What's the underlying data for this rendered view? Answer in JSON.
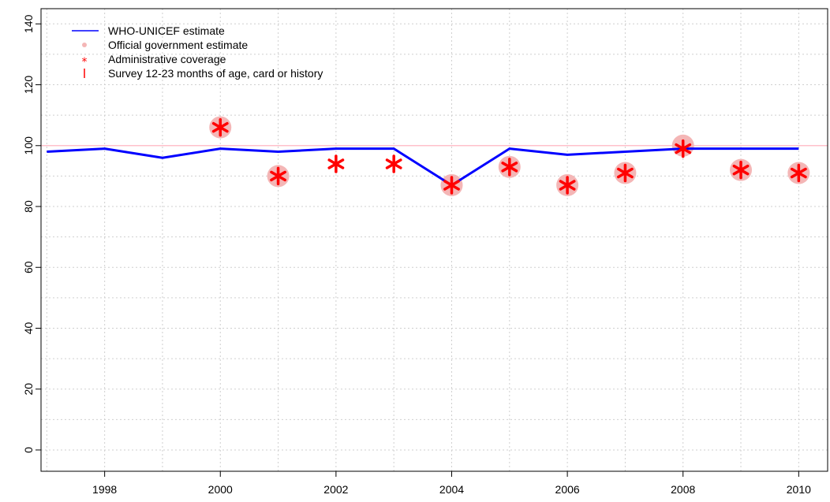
{
  "chart_data": {
    "type": "line",
    "x_range": [
      1996.9,
      2010.5
    ],
    "y_range": [
      -7,
      145
    ],
    "x_ticks": [
      1998,
      2000,
      2002,
      2004,
      2006,
      2008,
      2010
    ],
    "y_ticks": [
      0,
      20,
      40,
      60,
      80,
      100,
      120,
      140
    ],
    "x_tick_labels": [
      "1998",
      "2000",
      "2002",
      "2004",
      "2006",
      "2008",
      "2010"
    ],
    "y_tick_labels": [
      "0",
      "20",
      "40",
      "60",
      "80",
      "100",
      "120",
      "140"
    ],
    "grid": true,
    "reference_line": {
      "value": 100,
      "color": "#ffc0cb"
    },
    "legend": {
      "placement": "top-left",
      "entries": [
        {
          "label": "WHO-UNICEF estimate",
          "marker": "line",
          "color": "#0000ff"
        },
        {
          "label": "Official government estimate",
          "marker": "dot",
          "color": "#f4b6b6"
        },
        {
          "label": "Administrative coverage",
          "marker": "star",
          "color": "#ff0000"
        },
        {
          "label": "Survey 12-23 months of age, card or history",
          "marker": "bar",
          "color": "#ff0000"
        }
      ]
    },
    "series": [
      {
        "name": "WHO-UNICEF estimate",
        "color": "#0000ff",
        "kind": "line",
        "x": [
          1997,
          1998,
          1999,
          2000,
          2001,
          2002,
          2003,
          2004,
          2005,
          2006,
          2007,
          2008,
          2009,
          2010
        ],
        "y": [
          98,
          99,
          96,
          99,
          98,
          99,
          99,
          87,
          99,
          97,
          98,
          99,
          99,
          99
        ]
      },
      {
        "name": "Official government estimate",
        "color": "#f4b6b6",
        "kind": "dot",
        "x": [
          2000,
          2001,
          2004,
          2005,
          2006,
          2007,
          2008,
          2009,
          2010
        ],
        "y": [
          106,
          90,
          87,
          93,
          87,
          91,
          100,
          92,
          91
        ]
      },
      {
        "name": "Administrative coverage",
        "color": "#ff0000",
        "kind": "star",
        "x": [
          2000,
          2001,
          2002,
          2003,
          2004,
          2005,
          2006,
          2007,
          2008,
          2009,
          2010
        ],
        "y": [
          106,
          90,
          94,
          94,
          87,
          93,
          87,
          91,
          99,
          92,
          91
        ]
      }
    ]
  }
}
